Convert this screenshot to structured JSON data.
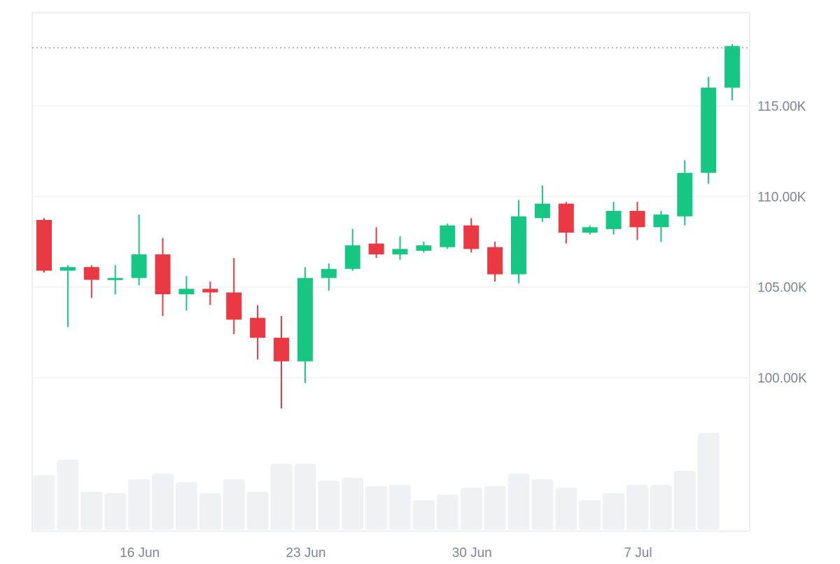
{
  "colors": {
    "up": "#16c784",
    "down": "#ea3943",
    "volume": "#eff2f5",
    "grid": "#eff2f5",
    "axis_text": "#7b8494",
    "last_price_line": "#9aa3ad"
  },
  "chart_data": {
    "type": "candlestick",
    "ylim": [
      96000,
      120500
    ],
    "yticks": [
      {
        "value": 100000,
        "label": "100.00K"
      },
      {
        "value": 105000,
        "label": "105.00K"
      },
      {
        "value": 110000,
        "label": "110.00K"
      },
      {
        "value": 115000,
        "label": "115.00K"
      }
    ],
    "xticks": [
      {
        "index": 4,
        "label": "16 Jun"
      },
      {
        "index": 11,
        "label": "23 Jun"
      },
      {
        "index": 18,
        "label": "30 Jun"
      },
      {
        "index": 25,
        "label": "7 Jul"
      }
    ],
    "last_price": 118200,
    "candles": [
      {
        "date": "12 Jun",
        "open": 108700,
        "high": 108800,
        "low": 105800,
        "close": 105900,
        "volume": 78
      },
      {
        "date": "13 Jun",
        "open": 105900,
        "high": 106200,
        "low": 102800,
        "close": 106100,
        "volume": 100
      },
      {
        "date": "14 Jun",
        "open": 106100,
        "high": 106200,
        "low": 104400,
        "close": 105400,
        "volume": 54
      },
      {
        "date": "15 Jun",
        "open": 105400,
        "high": 106200,
        "low": 104600,
        "close": 105500,
        "volume": 52
      },
      {
        "date": "16 Jun",
        "open": 105500,
        "high": 109000,
        "low": 105100,
        "close": 106800,
        "volume": 72
      },
      {
        "date": "17 Jun",
        "open": 106800,
        "high": 107700,
        "low": 103400,
        "close": 104600,
        "volume": 80
      },
      {
        "date": "18 Jun",
        "open": 104600,
        "high": 105600,
        "low": 103700,
        "close": 104900,
        "volume": 68
      },
      {
        "date": "19 Jun",
        "open": 104900,
        "high": 105300,
        "low": 104000,
        "close": 104700,
        "volume": 52
      },
      {
        "date": "20 Jun",
        "open": 104700,
        "high": 106600,
        "low": 102400,
        "close": 103200,
        "volume": 72
      },
      {
        "date": "21 Jun",
        "open": 103300,
        "high": 104000,
        "low": 101000,
        "close": 102200,
        "volume": 54
      },
      {
        "date": "22 Jun",
        "open": 102200,
        "high": 103400,
        "low": 98300,
        "close": 100900,
        "volume": 94
      },
      {
        "date": "23 Jun",
        "open": 100900,
        "high": 106100,
        "low": 99700,
        "close": 105500,
        "volume": 94
      },
      {
        "date": "24 Jun",
        "open": 105500,
        "high": 106300,
        "low": 104800,
        "close": 106000,
        "volume": 70
      },
      {
        "date": "25 Jun",
        "open": 106000,
        "high": 108200,
        "low": 105900,
        "close": 107300,
        "volume": 74
      },
      {
        "date": "26 Jun",
        "open": 107400,
        "high": 108300,
        "low": 106600,
        "close": 106800,
        "volume": 62
      },
      {
        "date": "27 Jun",
        "open": 106800,
        "high": 107800,
        "low": 106500,
        "close": 107100,
        "volume": 64
      },
      {
        "date": "28 Jun",
        "open": 107000,
        "high": 107500,
        "low": 106900,
        "close": 107300,
        "volume": 42
      },
      {
        "date": "29 Jun",
        "open": 107200,
        "high": 108500,
        "low": 107100,
        "close": 108400,
        "volume": 50
      },
      {
        "date": "30 Jun",
        "open": 108400,
        "high": 108800,
        "low": 106900,
        "close": 107100,
        "volume": 60
      },
      {
        "date": "1 Jul",
        "open": 107200,
        "high": 107500,
        "low": 105300,
        "close": 105700,
        "volume": 62
      },
      {
        "date": "2 Jul",
        "open": 105700,
        "high": 109800,
        "low": 105200,
        "close": 108900,
        "volume": 80
      },
      {
        "date": "3 Jul",
        "open": 108800,
        "high": 110600,
        "low": 108600,
        "close": 109600,
        "volume": 72
      },
      {
        "date": "4 Jul",
        "open": 109600,
        "high": 109700,
        "low": 107400,
        "close": 108000,
        "volume": 60
      },
      {
        "date": "5 Jul",
        "open": 108000,
        "high": 108400,
        "low": 107900,
        "close": 108300,
        "volume": 42
      },
      {
        "date": "6 Jul",
        "open": 108200,
        "high": 109700,
        "low": 107900,
        "close": 109200,
        "volume": 52
      },
      {
        "date": "7 Jul",
        "open": 109200,
        "high": 109700,
        "low": 107600,
        "close": 108300,
        "volume": 64
      },
      {
        "date": "8 Jul",
        "open": 108300,
        "high": 109200,
        "low": 107500,
        "close": 109000,
        "volume": 64
      },
      {
        "date": "9 Jul",
        "open": 108900,
        "high": 112000,
        "low": 108400,
        "close": 111300,
        "volume": 84
      },
      {
        "date": "10 Jul",
        "open": 111300,
        "high": 116600,
        "low": 110700,
        "close": 116000,
        "volume": 138
      },
      {
        "date": "11 Jul",
        "open": 116000,
        "high": 118400,
        "low": 115300,
        "close": 118300,
        "volume": null
      }
    ]
  }
}
